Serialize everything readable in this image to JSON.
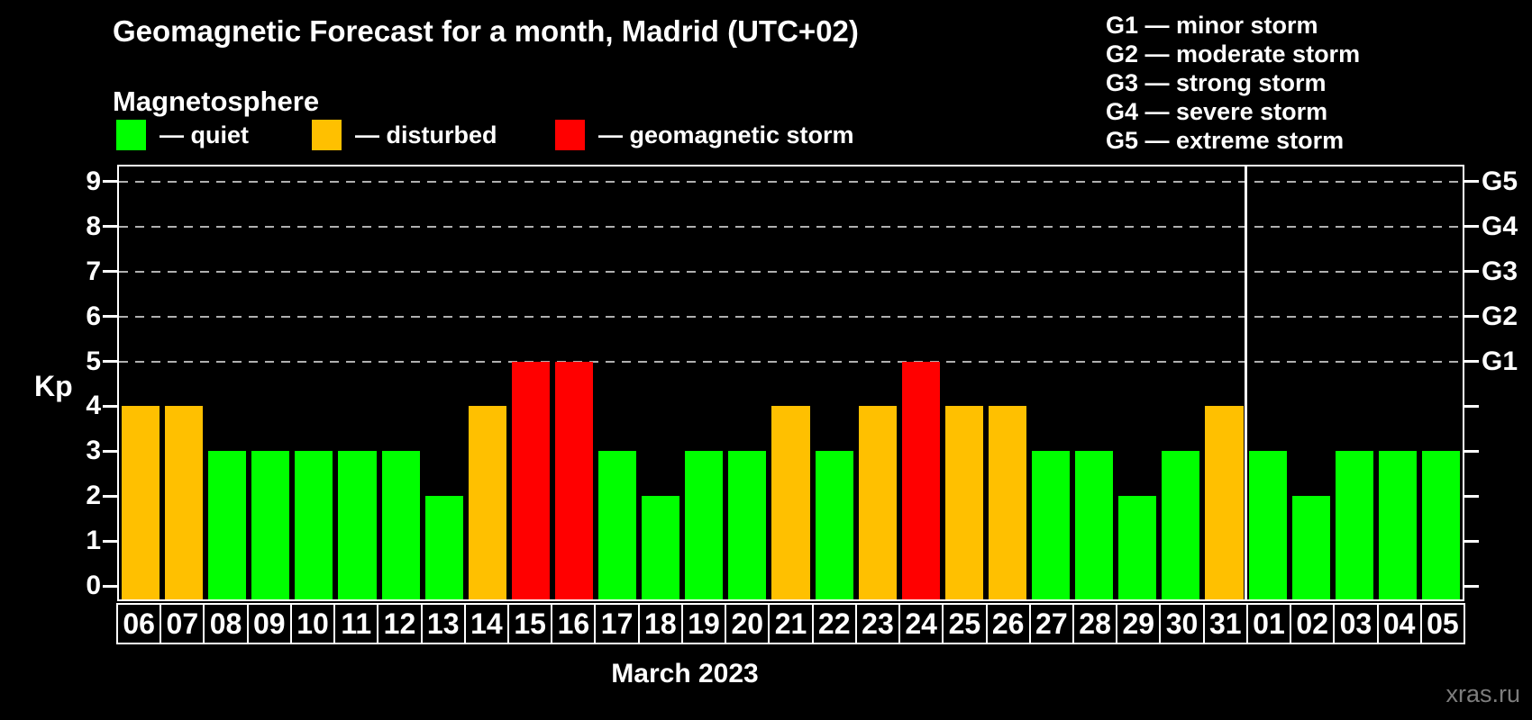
{
  "header": {
    "title": "Geomagnetic Forecast for a month, Madrid (UTC+02)",
    "subtitle": "Magnetosphere"
  },
  "legend": {
    "items": [
      {
        "name": "quiet",
        "label": "— quiet",
        "color": "#00ff00"
      },
      {
        "name": "disturbed",
        "label": "— disturbed",
        "color": "#ffc000"
      },
      {
        "name": "storm",
        "label": "— geomagnetic storm",
        "color": "#ff0000"
      }
    ]
  },
  "storm_scale_legend": {
    "lines": [
      "G1 — minor storm",
      "G2 — moderate storm",
      "G3 — strong storm",
      "G4 — severe storm",
      "G5 — extreme storm"
    ]
  },
  "axis": {
    "y_label": "Kp"
  },
  "footer": {
    "month_label": "March 2023",
    "watermark": "xras.ru"
  },
  "chart_data": {
    "type": "bar",
    "title": "Geomagnetic Forecast for a month, Madrid (UTC+02)",
    "xlabel": "March 2023",
    "ylabel": "Kp",
    "ylim": [
      0,
      9
    ],
    "y_ticks": [
      0,
      1,
      2,
      3,
      4,
      5,
      6,
      7,
      8,
      9
    ],
    "gridline_levels": [
      5,
      6,
      7,
      8,
      9
    ],
    "grid_style": "dashed horizontal gray lines at Kp 5–9 only",
    "right_axis": [
      {
        "label": "G1",
        "kp": 5
      },
      {
        "label": "G2",
        "kp": 6
      },
      {
        "label": "G3",
        "kp": 7
      },
      {
        "label": "G4",
        "kp": 8
      },
      {
        "label": "G5",
        "kp": 9
      }
    ],
    "categories": [
      "06",
      "07",
      "08",
      "09",
      "10",
      "11",
      "12",
      "13",
      "14",
      "15",
      "16",
      "17",
      "18",
      "19",
      "20",
      "21",
      "22",
      "23",
      "24",
      "25",
      "26",
      "27",
      "28",
      "29",
      "30",
      "31",
      "01",
      "02",
      "03",
      "04",
      "05"
    ],
    "values": [
      4,
      4,
      3,
      3,
      3,
      3,
      3,
      2,
      4,
      5,
      5,
      3,
      2,
      3,
      3,
      4,
      3,
      4,
      5,
      4,
      4,
      3,
      3,
      2,
      3,
      4,
      3,
      2,
      3,
      3,
      3
    ],
    "statuses": [
      "disturbed",
      "disturbed",
      "quiet",
      "quiet",
      "quiet",
      "quiet",
      "quiet",
      "quiet",
      "disturbed",
      "storm",
      "storm",
      "quiet",
      "quiet",
      "quiet",
      "quiet",
      "disturbed",
      "quiet",
      "disturbed",
      "storm",
      "disturbed",
      "disturbed",
      "quiet",
      "quiet",
      "quiet",
      "quiet",
      "disturbed",
      "quiet",
      "quiet",
      "quiet",
      "quiet",
      "quiet"
    ],
    "status_colors": {
      "quiet": "#00ff00",
      "disturbed": "#ffc000",
      "storm": "#ff0000"
    },
    "month_divider_index": 26
  }
}
